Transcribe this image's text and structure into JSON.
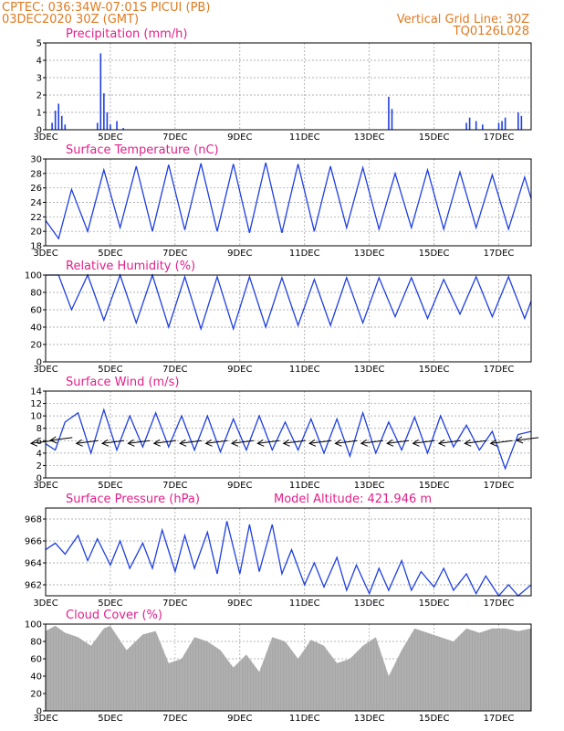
{
  "header": {
    "line1_left": "CPTEC:   036:34W-07:01S   PICUI (PB)",
    "line2_left": "03DEC2020 30Z (GMT)",
    "line1_right": "Vertical Grid Line: 30Z",
    "line2_right": "TQ0126L028"
  },
  "colors": {
    "header": "#e07a20",
    "title": "#e0208a",
    "series": "#1f3fe0",
    "cloud": "#a6a6a6"
  },
  "x_ticks": [
    "3DEC",
    "5DEC",
    "7DEC",
    "9DEC",
    "11DEC",
    "13DEC",
    "15DEC",
    "17DEC"
  ],
  "chart_data": [
    {
      "type": "bar",
      "title": "Precipitation (mm/h)",
      "ylim": [
        0,
        5
      ],
      "yticks": [
        "0",
        "1",
        "2",
        "3",
        "4",
        "5"
      ],
      "color": "#1f3fe0",
      "x": [
        3.2,
        3.3,
        3.4,
        3.5,
        3.6,
        4.6,
        4.7,
        4.8,
        4.9,
        5.0,
        5.2,
        5.4,
        13.6,
        13.7,
        16.0,
        16.1,
        16.3,
        16.5,
        17.0,
        17.1,
        17.2,
        17.6,
        17.7
      ],
      "values": [
        0.4,
        1.1,
        1.5,
        0.8,
        0.3,
        0.4,
        4.4,
        2.1,
        1.0,
        0.3,
        0.5,
        0.1,
        1.9,
        1.2,
        0.4,
        0.7,
        0.5,
        0.3,
        0.4,
        0.5,
        0.7,
        1.0,
        0.8
      ]
    },
    {
      "type": "line",
      "title": "Surface Temperature (nC)",
      "ylim": [
        18,
        30
      ],
      "yticks": [
        "18",
        "20",
        "22",
        "24",
        "26",
        "28",
        "30"
      ],
      "color": "#1f3fe0",
      "x": [
        3.0,
        3.4,
        3.8,
        4.3,
        4.8,
        5.3,
        5.8,
        6.3,
        6.8,
        7.3,
        7.8,
        8.3,
        8.8,
        9.3,
        9.8,
        10.3,
        10.8,
        11.3,
        11.8,
        12.3,
        12.8,
        13.3,
        13.8,
        14.3,
        14.8,
        15.3,
        15.8,
        16.3,
        16.8,
        17.3,
        17.8,
        18.0
      ],
      "values": [
        21.5,
        19.0,
        25.8,
        20.0,
        28.5,
        20.5,
        29.0,
        20.0,
        29.2,
        20.2,
        29.4,
        20.0,
        29.3,
        19.8,
        29.5,
        19.8,
        29.3,
        20.0,
        29.0,
        20.5,
        28.8,
        20.3,
        28.0,
        20.5,
        28.5,
        20.3,
        28.2,
        20.5,
        27.8,
        20.3,
        27.5,
        24.5
      ]
    },
    {
      "type": "line",
      "title": "Relative Humidity (%)",
      "ylim": [
        0,
        100
      ],
      "yticks": [
        "0",
        "20",
        "40",
        "60",
        "80",
        "100"
      ],
      "color": "#1f3fe0",
      "x": [
        3.0,
        3.4,
        3.8,
        4.3,
        4.8,
        5.3,
        5.8,
        6.3,
        6.8,
        7.3,
        7.8,
        8.3,
        8.8,
        9.3,
        9.8,
        10.3,
        10.8,
        11.3,
        11.8,
        12.3,
        12.8,
        13.3,
        13.8,
        14.3,
        14.8,
        15.3,
        15.8,
        16.3,
        16.8,
        17.3,
        17.8,
        18.0
      ],
      "values": [
        100,
        100,
        60,
        100,
        48,
        100,
        45,
        100,
        40,
        98,
        38,
        98,
        38,
        98,
        40,
        97,
        42,
        95,
        42,
        97,
        45,
        97,
        52,
        97,
        50,
        95,
        55,
        98,
        52,
        98,
        50,
        70
      ]
    },
    {
      "type": "line",
      "title": "Surface Wind (m/s)",
      "ylim": [
        0,
        14
      ],
      "yticks": [
        "0",
        "2",
        "4",
        "6",
        "8",
        "10",
        "12",
        "14"
      ],
      "color": "#1f3fe0",
      "x": [
        3.0,
        3.3,
        3.6,
        4.0,
        4.4,
        4.8,
        5.2,
        5.6,
        6.0,
        6.4,
        6.8,
        7.2,
        7.6,
        8.0,
        8.4,
        8.8,
        9.2,
        9.6,
        10.0,
        10.4,
        10.8,
        11.2,
        11.6,
        12.0,
        12.4,
        12.8,
        13.2,
        13.6,
        14.0,
        14.4,
        14.8,
        15.2,
        15.6,
        16.0,
        16.4,
        16.8,
        17.2,
        17.6,
        18.0
      ],
      "values": [
        5.5,
        4.5,
        9.0,
        10.5,
        4.0,
        11.0,
        4.5,
        10.0,
        5.0,
        10.5,
        5.0,
        10.0,
        4.5,
        10.0,
        4.2,
        9.5,
        4.5,
        10.0,
        4.5,
        9.0,
        4.5,
        9.5,
        4.0,
        9.5,
        3.5,
        10.5,
        4.0,
        9.0,
        4.5,
        9.8,
        4.0,
        10.0,
        5.0,
        8.5,
        4.5,
        7.5,
        1.5,
        7.0,
        7.5
      ]
    },
    {
      "type": "line",
      "title": "Surface Pressure (hPa)",
      "annotation": "Model Altitude: 421.946 m",
      "ylim": [
        961,
        969
      ],
      "yticks": [
        "962",
        "964",
        "966",
        "968"
      ],
      "color": "#1f3fe0",
      "x": [
        3.0,
        3.3,
        3.6,
        4.0,
        4.3,
        4.6,
        5.0,
        5.3,
        5.6,
        6.0,
        6.3,
        6.6,
        7.0,
        7.3,
        7.6,
        8.0,
        8.3,
        8.6,
        9.0,
        9.3,
        9.6,
        10.0,
        10.3,
        10.6,
        11.0,
        11.3,
        11.6,
        12.0,
        12.3,
        12.6,
        13.0,
        13.3,
        13.6,
        14.0,
        14.3,
        14.6,
        15.0,
        15.3,
        15.6,
        16.0,
        16.3,
        16.6,
        17.0,
        17.3,
        17.6,
        18.0
      ],
      "values": [
        965.2,
        965.8,
        964.8,
        966.5,
        964.2,
        966.2,
        963.8,
        966.0,
        963.5,
        965.8,
        963.5,
        967.0,
        963.2,
        966.5,
        963.5,
        966.8,
        963.0,
        967.8,
        963.0,
        967.5,
        963.2,
        967.5,
        963.0,
        965.2,
        962.0,
        964.0,
        961.8,
        964.5,
        961.5,
        963.8,
        961.2,
        963.5,
        961.5,
        964.2,
        961.5,
        963.2,
        961.8,
        963.5,
        961.5,
        963.0,
        961.2,
        962.8,
        961.0,
        962.0,
        960.8,
        962.0
      ]
    },
    {
      "type": "area",
      "title": "Cloud Cover (%)",
      "ylim": [
        0,
        100
      ],
      "yticks": [
        "0",
        "20",
        "40",
        "60",
        "80",
        "100"
      ],
      "color": "#a6a6a6",
      "x": [
        3.0,
        3.3,
        3.6,
        4.0,
        4.4,
        4.8,
        5.0,
        5.5,
        6.0,
        6.4,
        6.8,
        7.2,
        7.6,
        8.0,
        8.4,
        8.8,
        9.2,
        9.6,
        10.0,
        10.4,
        10.8,
        11.2,
        11.6,
        12.0,
        12.4,
        12.8,
        13.2,
        13.6,
        14.0,
        14.4,
        14.8,
        15.2,
        15.6,
        16.0,
        16.4,
        16.8,
        17.2,
        17.6,
        18.0
      ],
      "values": [
        92,
        98,
        90,
        85,
        75,
        95,
        98,
        70,
        88,
        92,
        55,
        60,
        85,
        80,
        70,
        50,
        65,
        45,
        85,
        80,
        60,
        82,
        75,
        55,
        60,
        75,
        85,
        40,
        70,
        95,
        90,
        85,
        80,
        95,
        90,
        95,
        95,
        92,
        95
      ]
    }
  ]
}
